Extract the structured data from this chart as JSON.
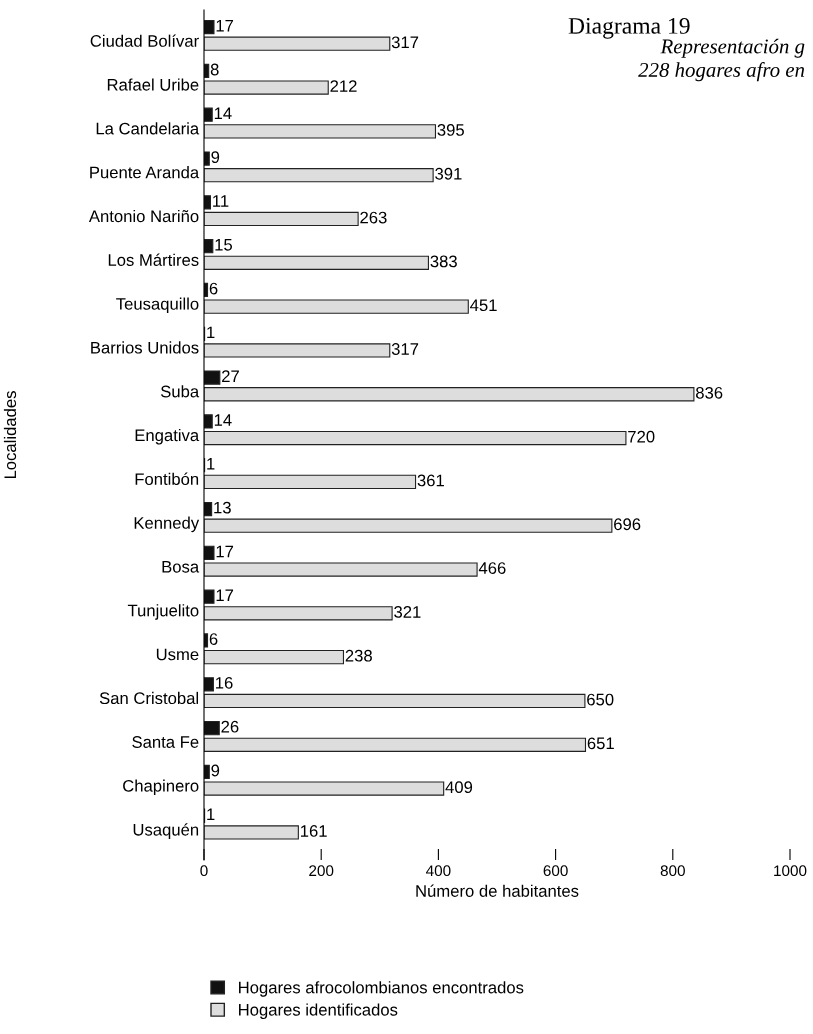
{
  "chart_data": {
    "type": "bar",
    "orientation": "horizontal",
    "title": "Diagrama 19",
    "subtitle": "Representación g\n228 hogares afro en",
    "xlabel": "Número de habitantes",
    "ylabel": "Localidades",
    "categories": [
      "Ciudad Bolívar",
      "Rafael Uribe",
      "La Candelaria",
      "Puente Aranda",
      "Antonio Nariño",
      "Los Mártires",
      "Teusaquillo",
      "Barrios Unidos",
      "Suba",
      "Engativa",
      "Fontibón",
      "Kennedy",
      "Bosa",
      "Tunjuelito",
      "Usme",
      "San Cristobal",
      "Santa Fe",
      "Chapinero",
      "Usaquén"
    ],
    "series": [
      {
        "name": "Hogares afrocolombianos encontrados",
        "color": "#111111",
        "values": [
          17,
          8,
          14,
          9,
          11,
          15,
          6,
          1,
          27,
          14,
          1,
          13,
          17,
          17,
          6,
          16,
          26,
          9,
          1
        ]
      },
      {
        "name": "Hogares identificados",
        "color": "#dddddd",
        "values": [
          317,
          212,
          395,
          391,
          263,
          383,
          451,
          317,
          836,
          720,
          361,
          696,
          466,
          321,
          238,
          650,
          651,
          409,
          161
        ]
      }
    ],
    "xlim": [
      0,
      1000
    ],
    "xticks": [
      0,
      200,
      400,
      600,
      800,
      1000
    ],
    "data_labels": true,
    "legend": "bottom",
    "grid": false
  }
}
